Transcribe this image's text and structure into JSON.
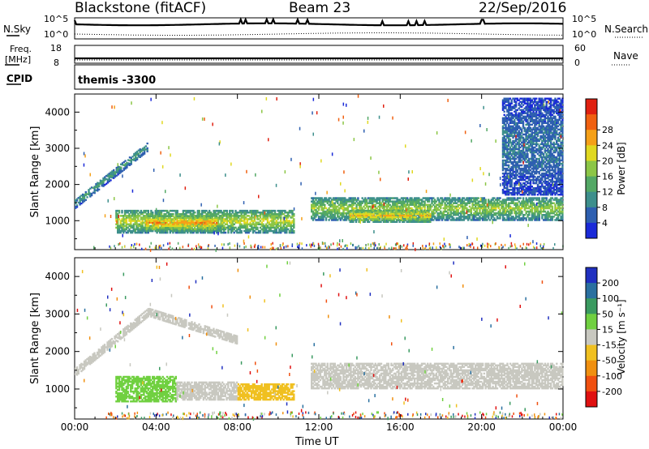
{
  "header": {
    "radar": "Blackstone (fitACF)",
    "beam": "Beam 23",
    "date": "22/Sep/2016"
  },
  "noise_panel": {
    "left_label": "N.Sky",
    "right_label": "N.Search",
    "ticks_left": [
      "10^5",
      "10^0"
    ],
    "ticks_right": [
      "10^5",
      "10^0"
    ]
  },
  "freq_panel": {
    "left_label_1": "Freq.",
    "left_label_2": "[MHz]",
    "right_label": "Nave",
    "ticks_left": [
      "18",
      "8"
    ],
    "ticks_right": [
      "60",
      "0"
    ]
  },
  "cpid_panel": {
    "label": "CPID",
    "value": "themis -3300"
  },
  "chart_data": [
    {
      "type": "heatmap",
      "name": "power",
      "ylabel": "Slant Range [km]",
      "xlabel": "Time UT",
      "x_ticks": [
        "00:00",
        "04:00",
        "08:00",
        "12:00",
        "16:00",
        "20:00",
        "00:00"
      ],
      "y_ticks": [
        1000,
        2000,
        3000,
        4000
      ],
      "ylim": [
        200,
        4500
      ],
      "xlim_hours": [
        0,
        24
      ],
      "colorbar": {
        "label": "Power [dB]",
        "ticks": [
          4,
          8,
          12,
          16,
          20,
          24,
          28
        ],
        "colors": [
          "#1a2ad8",
          "#2e5fb0",
          "#3d8f8c",
          "#53a865",
          "#8cc646",
          "#e0d820",
          "#f5a018",
          "#f06010",
          "#e02010"
        ]
      },
      "regions": [
        {
          "t0": 0.0,
          "t1": 3.6,
          "r0": 1400,
          "r1": 3100,
          "level": 12,
          "note": "upper-band rising"
        },
        {
          "t0": 2.0,
          "t1": 10.8,
          "r0": 650,
          "r1": 1300,
          "level": 20
        },
        {
          "t0": 3.5,
          "t1": 7.0,
          "r0": 700,
          "r1": 1150,
          "level": 26
        },
        {
          "t0": 11.6,
          "t1": 24.0,
          "r0": 1000,
          "r1": 1650,
          "level": 18
        },
        {
          "t0": 13.5,
          "t1": 17.5,
          "r0": 950,
          "r1": 1300,
          "level": 24
        },
        {
          "t0": 21.0,
          "t1": 24.0,
          "r0": 1700,
          "r1": 4400,
          "level": 8
        }
      ]
    },
    {
      "type": "heatmap",
      "name": "velocity",
      "ylabel": "Slant Range [km]",
      "xlabel": "Time UT",
      "x_ticks": [
        "00:00",
        "04:00",
        "08:00",
        "12:00",
        "16:00",
        "20:00",
        "00:00"
      ],
      "y_ticks": [
        1000,
        2000,
        3000,
        4000
      ],
      "ylim": [
        200,
        4500
      ],
      "xlim_hours": [
        0,
        24
      ],
      "colorbar": {
        "label": "Velocity [m s⁻¹]",
        "ticks": [
          200,
          100,
          50,
          15,
          -15,
          -50,
          -100,
          -200
        ],
        "colors": [
          "#2030c0",
          "#2a70a0",
          "#3a9a60",
          "#70d040",
          "#c8c8c0",
          "#f0c020",
          "#f09010",
          "#f05010",
          "#e01010"
        ]
      },
      "regions": [
        {
          "t0": 0.0,
          "t1": 8.0,
          "r0": 1400,
          "r1": 3100,
          "velocity": 0
        },
        {
          "t0": 2.0,
          "t1": 5.0,
          "r0": 650,
          "r1": 1350,
          "velocity": 30
        },
        {
          "t0": 5.0,
          "t1": 8.0,
          "r0": 700,
          "r1": 1200,
          "velocity": 0
        },
        {
          "t0": 8.0,
          "t1": 10.8,
          "r0": 700,
          "r1": 1150,
          "velocity": -30
        },
        {
          "t0": 11.6,
          "t1": 24.0,
          "r0": 1000,
          "r1": 1700,
          "velocity": 0
        }
      ]
    }
  ],
  "axis_label": "Time UT"
}
